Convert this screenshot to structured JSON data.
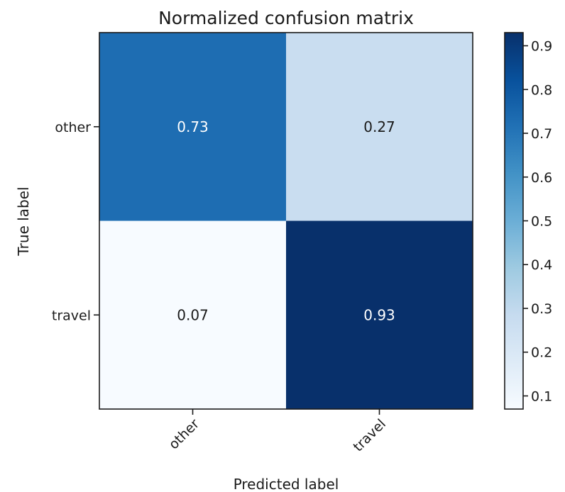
{
  "chart_data": {
    "type": "heatmap",
    "title": "Normalized confusion matrix",
    "xlabel": "Predicted label",
    "ylabel": "True label",
    "x_categories": [
      "other",
      "travel"
    ],
    "y_categories": [
      "other",
      "travel"
    ],
    "values": [
      [
        0.73,
        0.27
      ],
      [
        0.07,
        0.93
      ]
    ],
    "value_labels": [
      [
        "0.73",
        "0.27"
      ],
      [
        "0.07",
        "0.93"
      ]
    ],
    "colormap": "Blues",
    "colorbar": {
      "range": [
        0.07,
        0.93
      ],
      "ticks": [
        0.1,
        0.2,
        0.3,
        0.4,
        0.5,
        0.6,
        0.7,
        0.8,
        0.9
      ],
      "tick_labels": [
        "0.1",
        "0.2",
        "0.3",
        "0.4",
        "0.5",
        "0.6",
        "0.7",
        "0.8",
        "0.9"
      ]
    },
    "grid": false
  }
}
